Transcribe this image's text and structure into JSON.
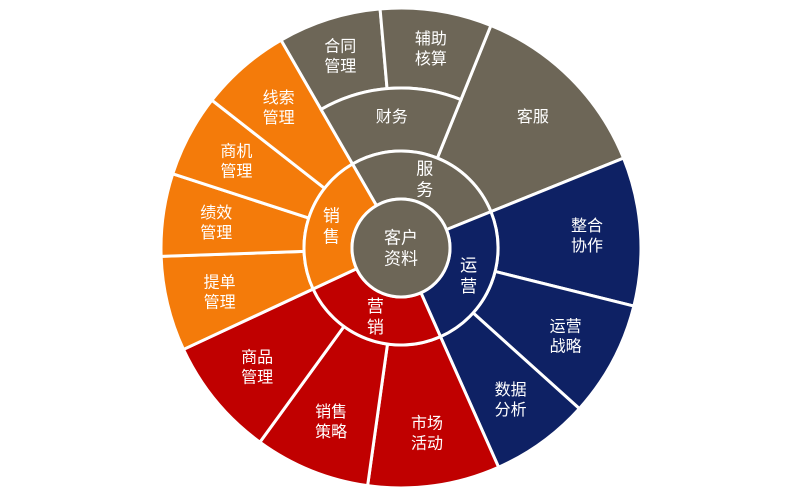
{
  "center": {
    "lines": [
      "客户",
      "资料"
    ],
    "color": "#6d6657"
  },
  "groups": [
    {
      "key": "service",
      "name": "服务",
      "color": "#6d6657",
      "items": [
        {
          "lines": [
            "客服"
          ]
        },
        {
          "lines": [
            "财务"
          ],
          "children": [
            {
              "lines": [
                "合同",
                "管理"
              ]
            },
            {
              "lines": [
                "辅助",
                "核算"
              ]
            }
          ]
        }
      ]
    },
    {
      "key": "operation",
      "name": "运营",
      "color": "#0e2164",
      "items": [
        {
          "lines": [
            "整合",
            "协作"
          ]
        },
        {
          "lines": [
            "运营",
            "战略"
          ]
        },
        {
          "lines": [
            "数据",
            "分析"
          ]
        }
      ]
    },
    {
      "key": "marketing",
      "name": "营销",
      "color": "#c00000",
      "items": [
        {
          "lines": [
            "市场",
            "活动"
          ]
        },
        {
          "lines": [
            "销售",
            "策略"
          ]
        },
        {
          "lines": [
            "商品",
            "管理"
          ]
        }
      ]
    },
    {
      "key": "sales",
      "name": "销售",
      "color": "#f47b0a",
      "items": [
        {
          "lines": [
            "提单",
            "管理"
          ]
        },
        {
          "lines": [
            "绩效",
            "管理"
          ]
        },
        {
          "lines": [
            "商机",
            "管理"
          ]
        },
        {
          "lines": [
            "线索",
            "管理"
          ]
        }
      ]
    }
  ]
}
